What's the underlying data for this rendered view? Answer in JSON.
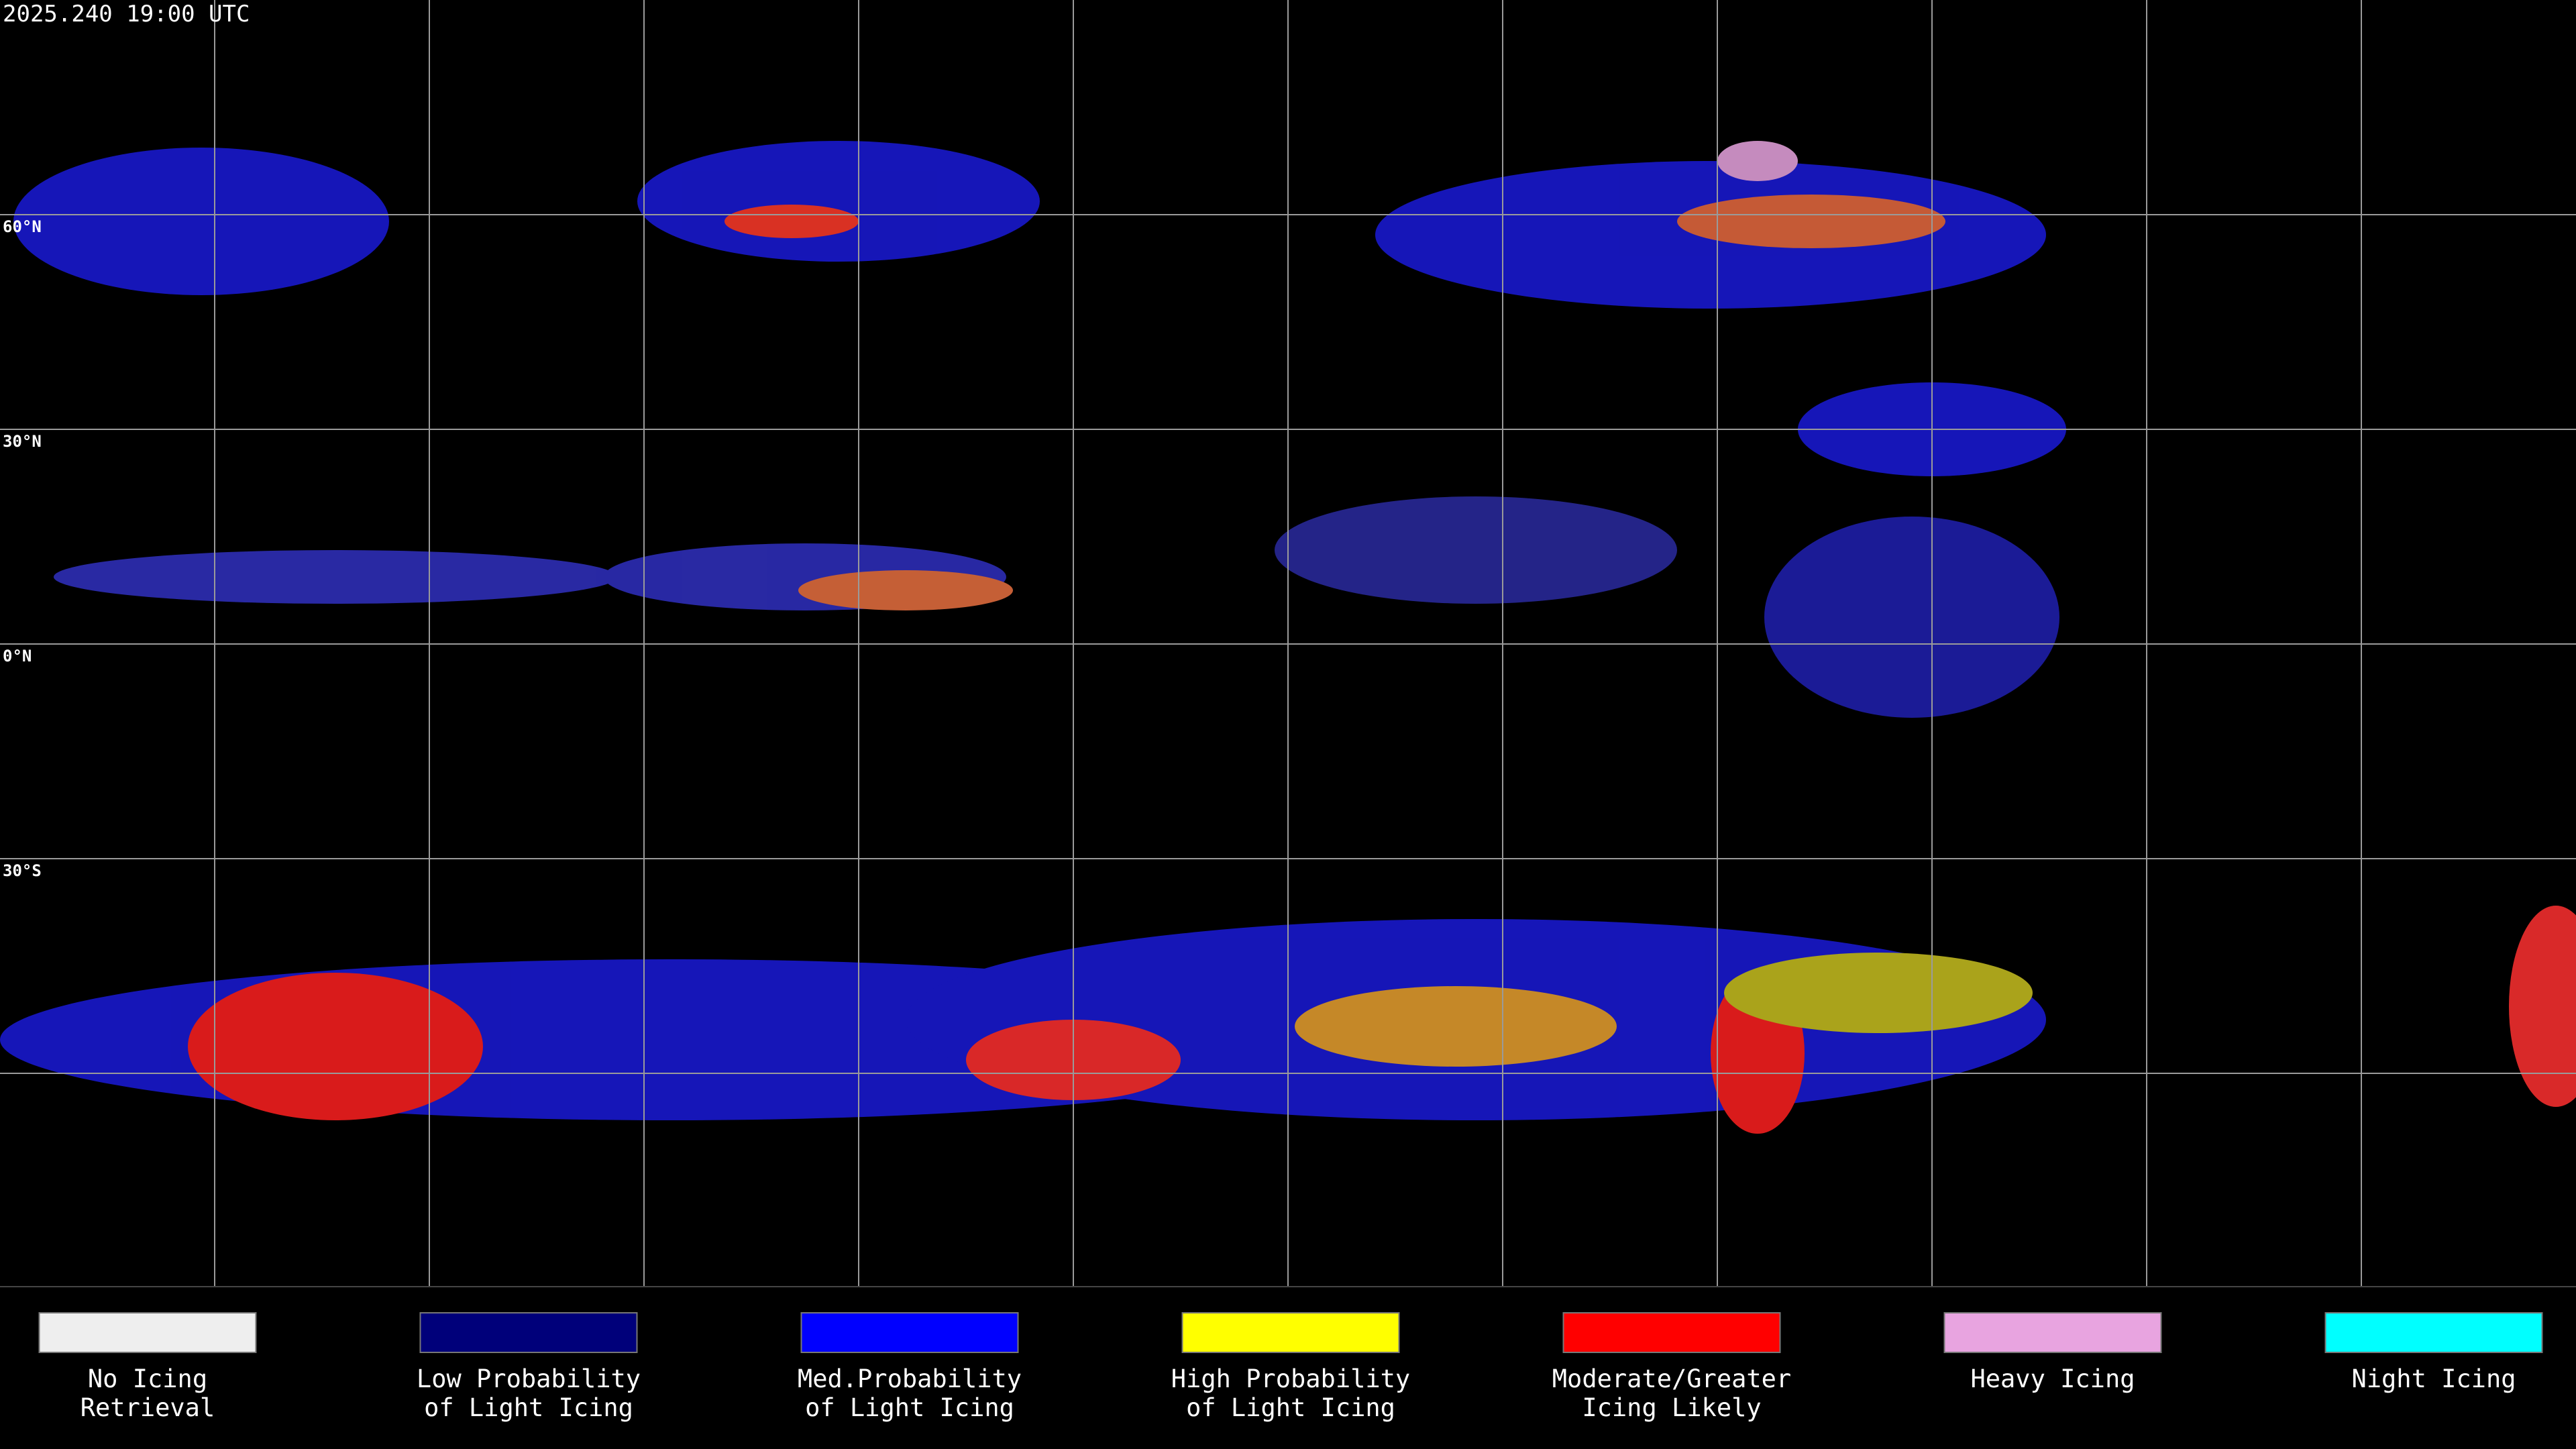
{
  "timestamp": "2025.240 19:00 UTC",
  "lat_labels": [
    "60°N",
    "30°N",
    "0°N",
    "30°S"
  ],
  "legend": [
    {
      "label": [
        "No Icing",
        "Retrieval"
      ],
      "color": "#eeeeee"
    },
    {
      "label": [
        "Low Probability",
        "of Light Icing"
      ],
      "color": "#00007a"
    },
    {
      "label": [
        "Med.Probability",
        "of Light Icing"
      ],
      "color": "#0000ff"
    },
    {
      "label": [
        "High Probability",
        "of Light Icing"
      ],
      "color": "#ffff00"
    },
    {
      "label": [
        "Moderate/Greater",
        "Icing Likely"
      ],
      "color": "#ff0000"
    },
    {
      "label": [
        "Heavy Icing"
      ],
      "color": "#e8a4e0"
    },
    {
      "label": [
        "Night Icing"
      ],
      "color": "#00ffff"
    }
  ]
}
